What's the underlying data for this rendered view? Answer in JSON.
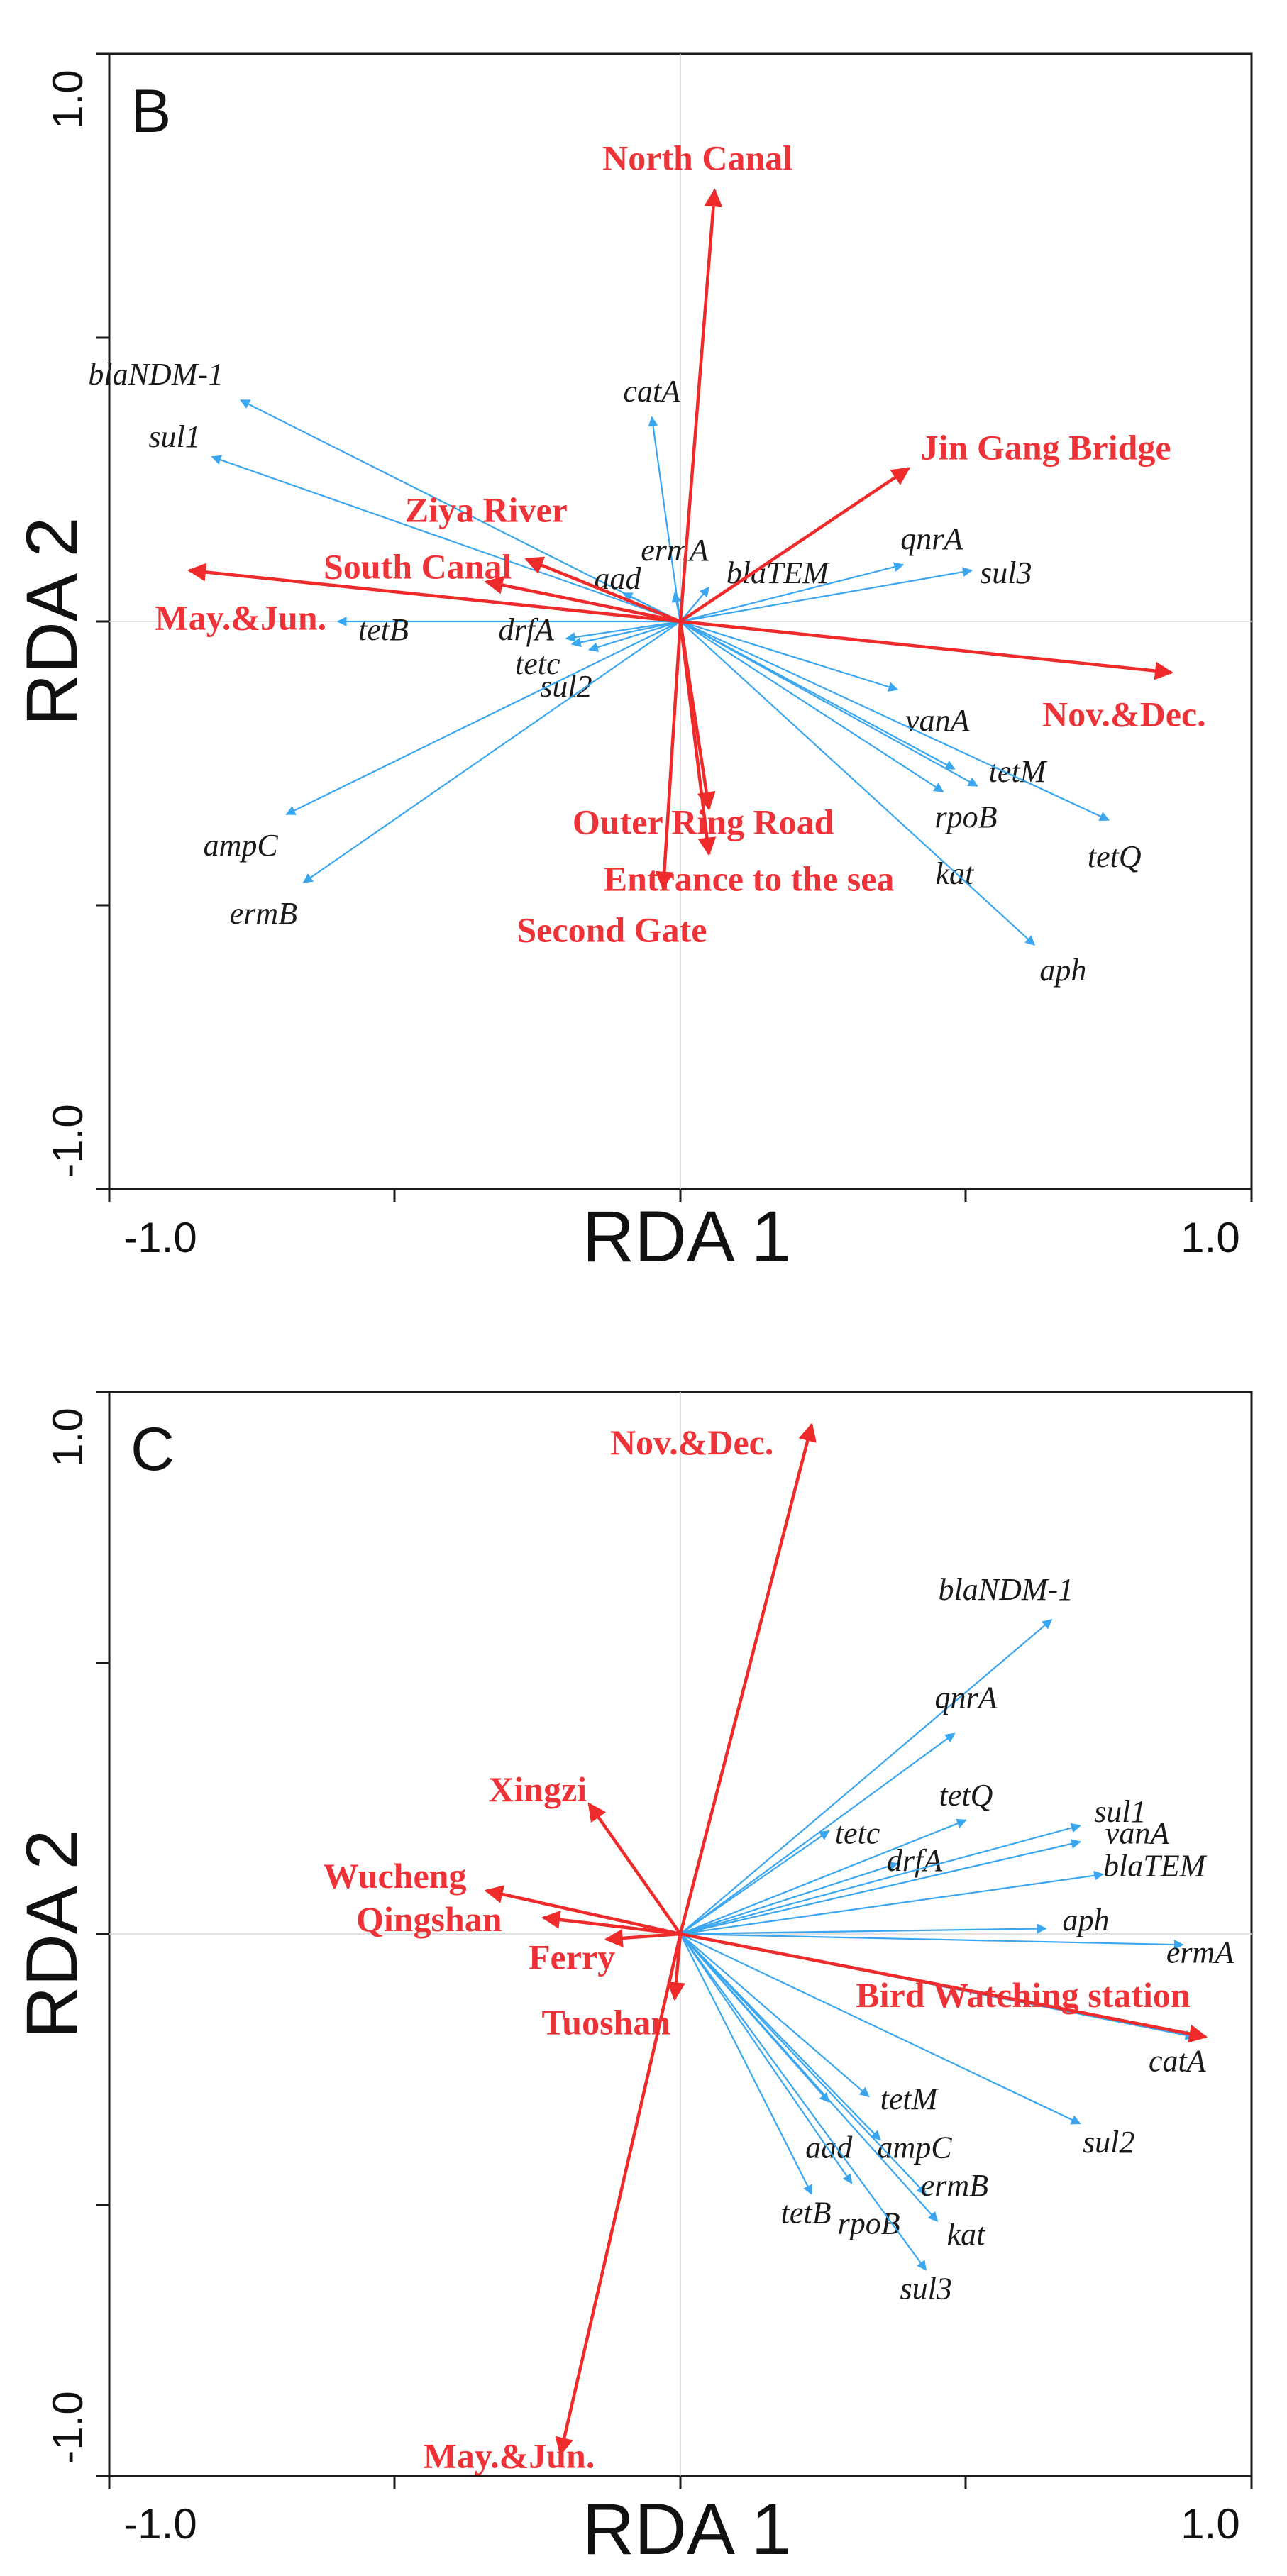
{
  "chart_data": [
    {
      "type": "biplot",
      "panel_label": "B",
      "xlabel": "RDA 1",
      "ylabel": "RDA 2",
      "xlim": [
        -1.0,
        1.0
      ],
      "ylim": [
        -1.0,
        1.0
      ],
      "x_tick_labels": [
        "-1.0",
        "1.0"
      ],
      "y_tick_labels": [
        "1.0",
        "-1.0"
      ],
      "colors": {
        "gene": "#3aa6f0",
        "env": "#ee2a2a"
      },
      "genes": [
        {
          "name": "blaNDM-1",
          "x": -0.77,
          "y": 0.39,
          "lx": -0.8,
          "ly": 0.43,
          "anchor": "end"
        },
        {
          "name": "sul1",
          "x": -0.82,
          "y": 0.29,
          "lx": -0.84,
          "ly": 0.32,
          "anchor": "end"
        },
        {
          "name": "catA",
          "x": -0.05,
          "y": 0.36,
          "lx": -0.05,
          "ly": 0.4,
          "anchor": "middle"
        },
        {
          "name": "ermA",
          "x": -0.01,
          "y": 0.05,
          "lx": -0.01,
          "ly": 0.12,
          "anchor": "middle"
        },
        {
          "name": "aad",
          "x": -0.1,
          "y": 0.05,
          "lx": -0.11,
          "ly": 0.07,
          "anchor": "middle"
        },
        {
          "name": "blaTEM",
          "x": 0.05,
          "y": 0.06,
          "lx": 0.17,
          "ly": 0.08,
          "anchor": "middle"
        },
        {
          "name": "qnrA",
          "x": 0.39,
          "y": 0.1,
          "lx": 0.44,
          "ly": 0.14,
          "anchor": "middle"
        },
        {
          "name": "sul3",
          "x": 0.51,
          "y": 0.09,
          "lx": 0.57,
          "ly": 0.08,
          "anchor": "middle"
        },
        {
          "name": "tetB",
          "x": -0.6,
          "y": 0.0,
          "lx": -0.52,
          "ly": -0.02,
          "anchor": "middle"
        },
        {
          "name": "drfA",
          "x": -0.2,
          "y": -0.03,
          "lx": -0.27,
          "ly": -0.02,
          "anchor": "middle"
        },
        {
          "name": "tetc",
          "x": -0.19,
          "y": -0.04,
          "lx": -0.25,
          "ly": -0.08,
          "anchor": "middle"
        },
        {
          "name": "sul2",
          "x": -0.16,
          "y": -0.05,
          "lx": -0.2,
          "ly": -0.12,
          "anchor": "middle"
        },
        {
          "name": "vanA",
          "x": 0.38,
          "y": -0.12,
          "lx": 0.45,
          "ly": -0.18,
          "anchor": "middle"
        },
        {
          "name": "tetM",
          "x": 0.52,
          "y": -0.29,
          "lx": 0.59,
          "ly": -0.27,
          "anchor": "middle"
        },
        {
          "name": "rpoB",
          "x": 0.48,
          "y": -0.26,
          "lx": 0.5,
          "ly": -0.35,
          "anchor": "middle"
        },
        {
          "name": "tetQ",
          "x": 0.75,
          "y": -0.35,
          "lx": 0.76,
          "ly": -0.42,
          "anchor": "middle"
        },
        {
          "name": "kat",
          "x": 0.46,
          "y": -0.3,
          "lx": 0.48,
          "ly": -0.45,
          "anchor": "middle"
        },
        {
          "name": "aph",
          "x": 0.62,
          "y": -0.57,
          "lx": 0.67,
          "ly": -0.62,
          "anchor": "middle"
        },
        {
          "name": "ampC",
          "x": -0.69,
          "y": -0.34,
          "lx": -0.77,
          "ly": -0.4,
          "anchor": "middle"
        },
        {
          "name": "ermB",
          "x": -0.66,
          "y": -0.46,
          "lx": -0.73,
          "ly": -0.52,
          "anchor": "middle"
        }
      ],
      "env": [
        {
          "name": "North Canal",
          "x": 0.06,
          "y": 0.76,
          "lx": 0.03,
          "ly": 0.81,
          "anchor": "middle"
        },
        {
          "name": "Jin Gang Bridge",
          "x": 0.4,
          "y": 0.27,
          "lx": 0.64,
          "ly": 0.3,
          "anchor": "middle"
        },
        {
          "name": "Ziya River",
          "x": -0.34,
          "y": 0.07,
          "lx": -0.34,
          "ly": 0.19,
          "anchor": "middle"
        },
        {
          "name": "South Canal",
          "x": -0.27,
          "y": 0.11,
          "lx": -0.46,
          "ly": 0.09,
          "anchor": "middle"
        },
        {
          "name": "May.&Jun.",
          "x": -0.86,
          "y": 0.09,
          "lx": -0.92,
          "ly": 0.0,
          "anchor": "start"
        },
        {
          "name": "Nov.&Dec.",
          "x": 0.86,
          "y": -0.09,
          "lx": 0.92,
          "ly": -0.17,
          "anchor": "end"
        },
        {
          "name": "Outer Ring Road",
          "x": 0.05,
          "y": -0.33,
          "lx": 0.04,
          "ly": -0.36,
          "anchor": "middle"
        },
        {
          "name": "Entrance to the sea",
          "x": 0.05,
          "y": -0.41,
          "lx": 0.12,
          "ly": -0.46,
          "anchor": "middle"
        },
        {
          "name": "Second Gate",
          "x": -0.03,
          "y": -0.47,
          "lx": -0.12,
          "ly": -0.55,
          "anchor": "middle"
        }
      ]
    },
    {
      "type": "biplot",
      "panel_label": "C",
      "xlabel": "RDA 1",
      "ylabel": "RDA 2",
      "xlim": [
        -1.0,
        1.0
      ],
      "ylim": [
        -1.0,
        1.0
      ],
      "x_tick_labels": [
        "-1.0",
        "1.0"
      ],
      "y_tick_labels": [
        "1.0",
        "-1.0"
      ],
      "colors": {
        "gene": "#3aa6f0",
        "env": "#ee2a2a"
      },
      "genes": [
        {
          "name": "blaNDM-1",
          "x": 0.65,
          "y": 0.58,
          "lx": 0.57,
          "ly": 0.63,
          "anchor": "middle"
        },
        {
          "name": "qnrA",
          "x": 0.48,
          "y": 0.37,
          "lx": 0.5,
          "ly": 0.43,
          "anchor": "middle"
        },
        {
          "name": "tetc",
          "x": 0.26,
          "y": 0.19,
          "lx": 0.31,
          "ly": 0.18,
          "anchor": "middle"
        },
        {
          "name": "tetQ",
          "x": 0.5,
          "y": 0.21,
          "lx": 0.5,
          "ly": 0.25,
          "anchor": "middle"
        },
        {
          "name": "drfA",
          "x": 0.38,
          "y": 0.13,
          "lx": 0.41,
          "ly": 0.13,
          "anchor": "middle"
        },
        {
          "name": "sul1",
          "x": 0.7,
          "y": 0.2,
          "lx": 0.77,
          "ly": 0.22,
          "anchor": "middle"
        },
        {
          "name": "vanA",
          "x": 0.7,
          "y": 0.17,
          "lx": 0.8,
          "ly": 0.18,
          "anchor": "middle"
        },
        {
          "name": "blaTEM",
          "x": 0.74,
          "y": 0.11,
          "lx": 0.83,
          "ly": 0.12,
          "anchor": "middle"
        },
        {
          "name": "aph",
          "x": 0.64,
          "y": 0.01,
          "lx": 0.71,
          "ly": 0.02,
          "anchor": "middle"
        },
        {
          "name": "ermA",
          "x": 0.88,
          "y": -0.02,
          "lx": 0.91,
          "ly": -0.04,
          "anchor": "middle"
        },
        {
          "name": "catA",
          "x": 0.9,
          "y": -0.19,
          "lx": 0.87,
          "ly": -0.24,
          "anchor": "middle"
        },
        {
          "name": "sul2",
          "x": 0.7,
          "y": -0.35,
          "lx": 0.75,
          "ly": -0.39,
          "anchor": "middle"
        },
        {
          "name": "tetM",
          "x": 0.33,
          "y": -0.3,
          "lx": 0.4,
          "ly": -0.31,
          "anchor": "middle"
        },
        {
          "name": "ampC",
          "x": 0.35,
          "y": -0.38,
          "lx": 0.41,
          "ly": -0.4,
          "anchor": "middle"
        },
        {
          "name": "aad",
          "x": 0.26,
          "y": -0.31,
          "lx": 0.26,
          "ly": -0.4,
          "anchor": "middle"
        },
        {
          "name": "ermB",
          "x": 0.43,
          "y": -0.48,
          "lx": 0.48,
          "ly": -0.47,
          "anchor": "middle"
        },
        {
          "name": "tetB",
          "x": 0.23,
          "y": -0.48,
          "lx": 0.22,
          "ly": -0.52,
          "anchor": "middle"
        },
        {
          "name": "rpoB",
          "x": 0.3,
          "y": -0.46,
          "lx": 0.33,
          "ly": -0.54,
          "anchor": "middle"
        },
        {
          "name": "kat",
          "x": 0.45,
          "y": -0.53,
          "lx": 0.5,
          "ly": -0.56,
          "anchor": "middle"
        },
        {
          "name": "sul3",
          "x": 0.43,
          "y": -0.62,
          "lx": 0.43,
          "ly": -0.66,
          "anchor": "middle"
        }
      ],
      "env": [
        {
          "name": "Nov.&Dec.",
          "x": 0.23,
          "y": 0.94,
          "lx": 0.02,
          "ly": 0.9,
          "anchor": "middle"
        },
        {
          "name": "Xingzi",
          "x": -0.16,
          "y": 0.24,
          "lx": -0.25,
          "ly": 0.26,
          "anchor": "middle"
        },
        {
          "name": "Wucheng",
          "x": -0.34,
          "y": 0.08,
          "lx": -0.5,
          "ly": 0.1,
          "anchor": "middle"
        },
        {
          "name": "Qingshan",
          "x": -0.24,
          "y": 0.03,
          "lx": -0.44,
          "ly": 0.02,
          "anchor": "middle"
        },
        {
          "name": "Ferry",
          "x": -0.13,
          "y": -0.01,
          "lx": -0.19,
          "ly": -0.05,
          "anchor": "middle"
        },
        {
          "name": "Tuoshan",
          "x": -0.01,
          "y": -0.12,
          "lx": -0.13,
          "ly": -0.17,
          "anchor": "middle"
        },
        {
          "name": "Bird Watching station",
          "x": 0.92,
          "y": -0.19,
          "lx": 0.6,
          "ly": -0.12,
          "anchor": "middle"
        },
        {
          "name": "May.&Jun.",
          "x": -0.21,
          "y": -0.96,
          "lx": -0.3,
          "ly": -0.97,
          "anchor": "middle"
        }
      ]
    }
  ]
}
